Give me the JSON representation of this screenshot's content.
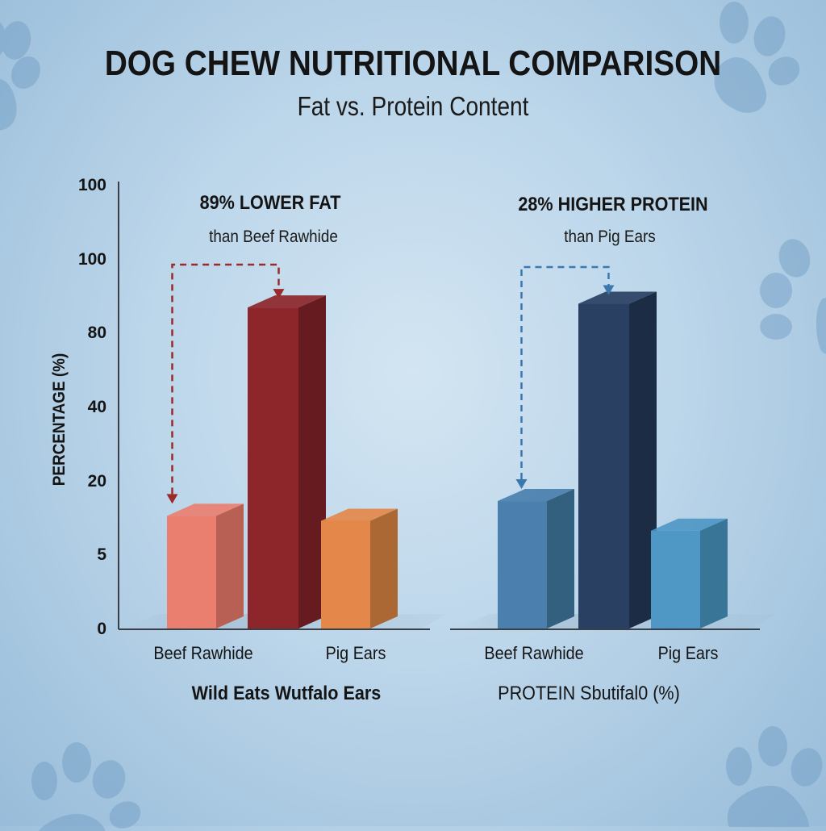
{
  "header": {
    "title": "DOG CHEW NUTRITIONAL COMPARISON",
    "subtitle": "Fat vs. Protein Content"
  },
  "colors": {
    "background": "#c4dced",
    "axis": "#3a3f46",
    "fat_annotation": "#9b2a2a",
    "protein_annotation": "#3a78b0"
  },
  "chart_data": {
    "type": "bar",
    "title": "DOG CHEW NUTRITIONAL COMPARISON",
    "subtitle": "Fat vs. Protein Content",
    "ylabel": "PERCENTAGE (%)",
    "y_tick_labels": [
      "0",
      "5",
      "20",
      "40",
      "80",
      "100",
      "100"
    ],
    "grid": false,
    "style": "3d-bars",
    "groups": [
      {
        "name": "fat",
        "group_label": "Wild Eats Wutfalo Ears",
        "x_tick_labels": [
          "Beef Rawhide",
          "Pig Ears"
        ],
        "annotation": {
          "headline": "89% LOWER FAT",
          "detail": "than Beef Rawhide"
        },
        "bars": [
          {
            "name": "Beef Rawhide",
            "value": 13,
            "color": "#ea7f70",
            "side_color": "#b96055"
          },
          {
            "name": "Wild Eats Buffalo Ears",
            "value": 87,
            "color": "#8d262b",
            "side_color": "#661b20"
          },
          {
            "name": "Pig Ears",
            "value": 12,
            "color": "#e3874a",
            "side_color": "#ab6734"
          }
        ]
      },
      {
        "name": "protein",
        "group_label": "PROTEIN Sbutifal0 (%)",
        "x_tick_labels": [
          "Beef Rawhide",
          "Pig Ears"
        ],
        "annotation": {
          "headline": "28% HIGHER PROTEIN",
          "detail": "than Pig Ears"
        },
        "bars": [
          {
            "name": "Beef Rawhide",
            "value": 16,
            "color": "#4a7fae",
            "side_color": "#33607f"
          },
          {
            "name": "Wild Eats Buffalo Ears",
            "value": 88,
            "color": "#2a4062",
            "side_color": "#1d2c45"
          },
          {
            "name": "Pig Ears",
            "value": 10,
            "color": "#4f97c5",
            "side_color": "#397596"
          }
        ]
      }
    ]
  }
}
